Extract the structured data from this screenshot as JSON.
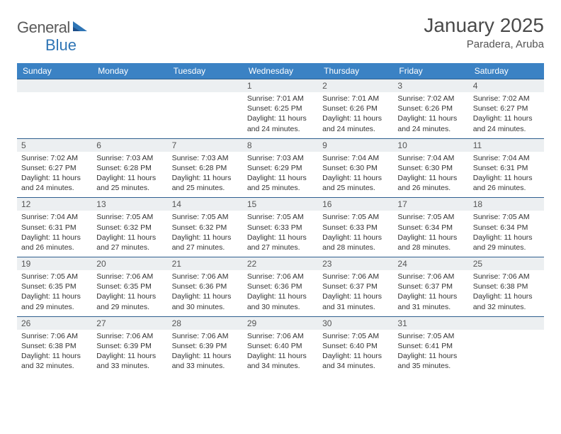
{
  "brand": {
    "part1": "General",
    "part2": "Blue"
  },
  "title": "January 2025",
  "location": "Paradera, Aruba",
  "colors": {
    "header_bg": "#3b82c4",
    "border": "#2f5f8f",
    "daynum_bg": "#eceff1",
    "logo_blue": "#2f75b5",
    "text": "#333333"
  },
  "dayNames": [
    "Sunday",
    "Monday",
    "Tuesday",
    "Wednesday",
    "Thursday",
    "Friday",
    "Saturday"
  ],
  "weeks": [
    [
      null,
      null,
      null,
      {
        "n": "1",
        "sr": "7:01 AM",
        "ss": "6:25 PM",
        "dl": "11 hours and 24 minutes."
      },
      {
        "n": "2",
        "sr": "7:01 AM",
        "ss": "6:26 PM",
        "dl": "11 hours and 24 minutes."
      },
      {
        "n": "3",
        "sr": "7:02 AM",
        "ss": "6:26 PM",
        "dl": "11 hours and 24 minutes."
      },
      {
        "n": "4",
        "sr": "7:02 AM",
        "ss": "6:27 PM",
        "dl": "11 hours and 24 minutes."
      }
    ],
    [
      {
        "n": "5",
        "sr": "7:02 AM",
        "ss": "6:27 PM",
        "dl": "11 hours and 24 minutes."
      },
      {
        "n": "6",
        "sr": "7:03 AM",
        "ss": "6:28 PM",
        "dl": "11 hours and 25 minutes."
      },
      {
        "n": "7",
        "sr": "7:03 AM",
        "ss": "6:28 PM",
        "dl": "11 hours and 25 minutes."
      },
      {
        "n": "8",
        "sr": "7:03 AM",
        "ss": "6:29 PM",
        "dl": "11 hours and 25 minutes."
      },
      {
        "n": "9",
        "sr": "7:04 AM",
        "ss": "6:30 PM",
        "dl": "11 hours and 25 minutes."
      },
      {
        "n": "10",
        "sr": "7:04 AM",
        "ss": "6:30 PM",
        "dl": "11 hours and 26 minutes."
      },
      {
        "n": "11",
        "sr": "7:04 AM",
        "ss": "6:31 PM",
        "dl": "11 hours and 26 minutes."
      }
    ],
    [
      {
        "n": "12",
        "sr": "7:04 AM",
        "ss": "6:31 PM",
        "dl": "11 hours and 26 minutes."
      },
      {
        "n": "13",
        "sr": "7:05 AM",
        "ss": "6:32 PM",
        "dl": "11 hours and 27 minutes."
      },
      {
        "n": "14",
        "sr": "7:05 AM",
        "ss": "6:32 PM",
        "dl": "11 hours and 27 minutes."
      },
      {
        "n": "15",
        "sr": "7:05 AM",
        "ss": "6:33 PM",
        "dl": "11 hours and 27 minutes."
      },
      {
        "n": "16",
        "sr": "7:05 AM",
        "ss": "6:33 PM",
        "dl": "11 hours and 28 minutes."
      },
      {
        "n": "17",
        "sr": "7:05 AM",
        "ss": "6:34 PM",
        "dl": "11 hours and 28 minutes."
      },
      {
        "n": "18",
        "sr": "7:05 AM",
        "ss": "6:34 PM",
        "dl": "11 hours and 29 minutes."
      }
    ],
    [
      {
        "n": "19",
        "sr": "7:05 AM",
        "ss": "6:35 PM",
        "dl": "11 hours and 29 minutes."
      },
      {
        "n": "20",
        "sr": "7:06 AM",
        "ss": "6:35 PM",
        "dl": "11 hours and 29 minutes."
      },
      {
        "n": "21",
        "sr": "7:06 AM",
        "ss": "6:36 PM",
        "dl": "11 hours and 30 minutes."
      },
      {
        "n": "22",
        "sr": "7:06 AM",
        "ss": "6:36 PM",
        "dl": "11 hours and 30 minutes."
      },
      {
        "n": "23",
        "sr": "7:06 AM",
        "ss": "6:37 PM",
        "dl": "11 hours and 31 minutes."
      },
      {
        "n": "24",
        "sr": "7:06 AM",
        "ss": "6:37 PM",
        "dl": "11 hours and 31 minutes."
      },
      {
        "n": "25",
        "sr": "7:06 AM",
        "ss": "6:38 PM",
        "dl": "11 hours and 32 minutes."
      }
    ],
    [
      {
        "n": "26",
        "sr": "7:06 AM",
        "ss": "6:38 PM",
        "dl": "11 hours and 32 minutes."
      },
      {
        "n": "27",
        "sr": "7:06 AM",
        "ss": "6:39 PM",
        "dl": "11 hours and 33 minutes."
      },
      {
        "n": "28",
        "sr": "7:06 AM",
        "ss": "6:39 PM",
        "dl": "11 hours and 33 minutes."
      },
      {
        "n": "29",
        "sr": "7:06 AM",
        "ss": "6:40 PM",
        "dl": "11 hours and 34 minutes."
      },
      {
        "n": "30",
        "sr": "7:05 AM",
        "ss": "6:40 PM",
        "dl": "11 hours and 34 minutes."
      },
      {
        "n": "31",
        "sr": "7:05 AM",
        "ss": "6:41 PM",
        "dl": "11 hours and 35 minutes."
      },
      null
    ]
  ],
  "labels": {
    "sunrise": "Sunrise:",
    "sunset": "Sunset:",
    "daylight": "Daylight:"
  }
}
